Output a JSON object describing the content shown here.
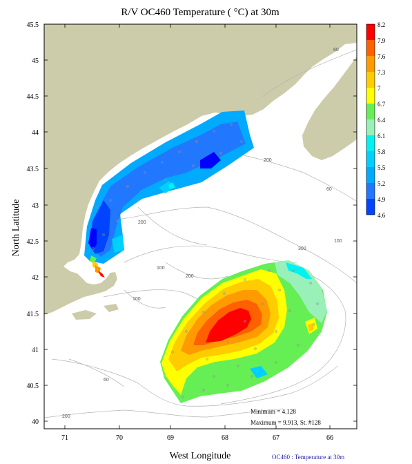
{
  "title": "R/V OC460 Temperature ( °C) at 30m",
  "xlabel": "West Longitude",
  "ylabel": "North Latitude",
  "x_ticks": [
    "71",
    "70",
    "69",
    "68",
    "67",
    "66"
  ],
  "y_ticks": [
    "45.5",
    "45",
    "44.5",
    "44",
    "43.5",
    "43",
    "42.5",
    "42",
    "41.5",
    "41",
    "40.5",
    "40"
  ],
  "colorbar": {
    "labels": [
      "8.2",
      "7.9",
      "7.6",
      "7.3",
      "7",
      "6.7",
      "6.4",
      "6.1",
      "5.8",
      "5.5",
      "5.2",
      "4.9",
      "4.6"
    ],
    "colors": [
      "#ff0000",
      "#ff6000",
      "#ff9a00",
      "#ffcc00",
      "#ffff00",
      "#66ee55",
      "#99f0b8",
      "#00f2f2",
      "#00d0ff",
      "#00aaff",
      "#2277ff",
      "#0044ff",
      "#0000ff"
    ]
  },
  "isobath_labels": [
    "60",
    "200",
    "60",
    "200",
    "300",
    "100",
    "100",
    "200",
    "100",
    "60",
    "100",
    "200"
  ],
  "stats": {
    "minimum": "Minimum = 4.128",
    "maximum": "Maximum = 9.913, St. #128"
  },
  "credit": "OC460 : Temperature at 30m",
  "colors": {
    "land": "#cdccaa",
    "isobath": "#b4b4b4",
    "station": "#909090"
  }
}
